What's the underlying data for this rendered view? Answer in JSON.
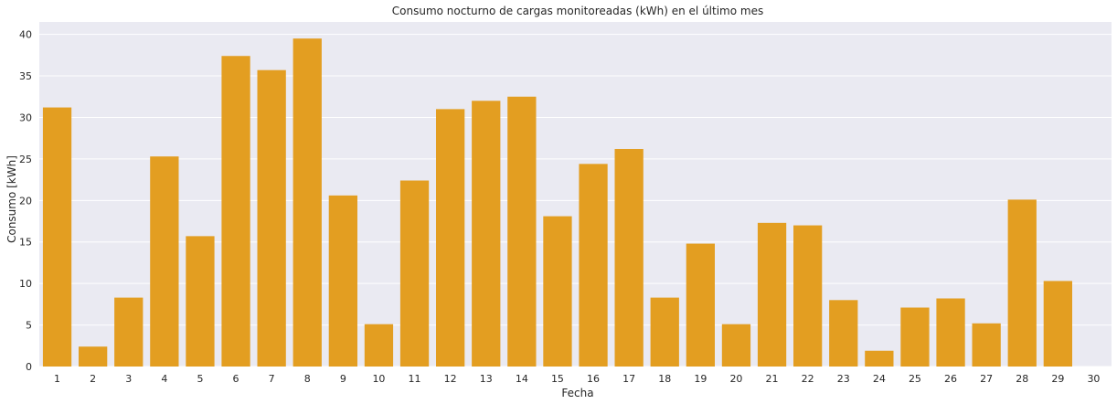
{
  "chart_data": {
    "type": "bar",
    "title": "Consumo nocturno de cargas monitoreadas (kWh) en el último mes",
    "xlabel": "Fecha",
    "ylabel": "Consumo [kWh]",
    "categories": [
      "1",
      "2",
      "3",
      "4",
      "5",
      "6",
      "7",
      "8",
      "9",
      "10",
      "11",
      "12",
      "13",
      "14",
      "15",
      "16",
      "17",
      "18",
      "19",
      "20",
      "21",
      "22",
      "23",
      "24",
      "25",
      "26",
      "27",
      "28",
      "29",
      "30"
    ],
    "values": [
      31.2,
      2.4,
      8.3,
      25.3,
      15.7,
      37.4,
      35.7,
      39.5,
      20.6,
      5.1,
      22.4,
      31.0,
      32.0,
      32.5,
      18.1,
      24.4,
      26.2,
      8.3,
      14.8,
      5.1,
      17.3,
      17.0,
      8.0,
      1.9,
      7.1,
      8.2,
      5.2,
      20.1,
      10.3,
      0
    ],
    "ylim": [
      0,
      41.5
    ],
    "yticks": [
      0,
      5,
      10,
      15,
      20,
      25,
      30,
      35,
      40
    ],
    "grid": true,
    "legend": "none",
    "colors": {
      "bar": "#e39e21",
      "plot_background": "#eaeaf2",
      "grid": "#ffffff",
      "text": "#262626"
    }
  }
}
